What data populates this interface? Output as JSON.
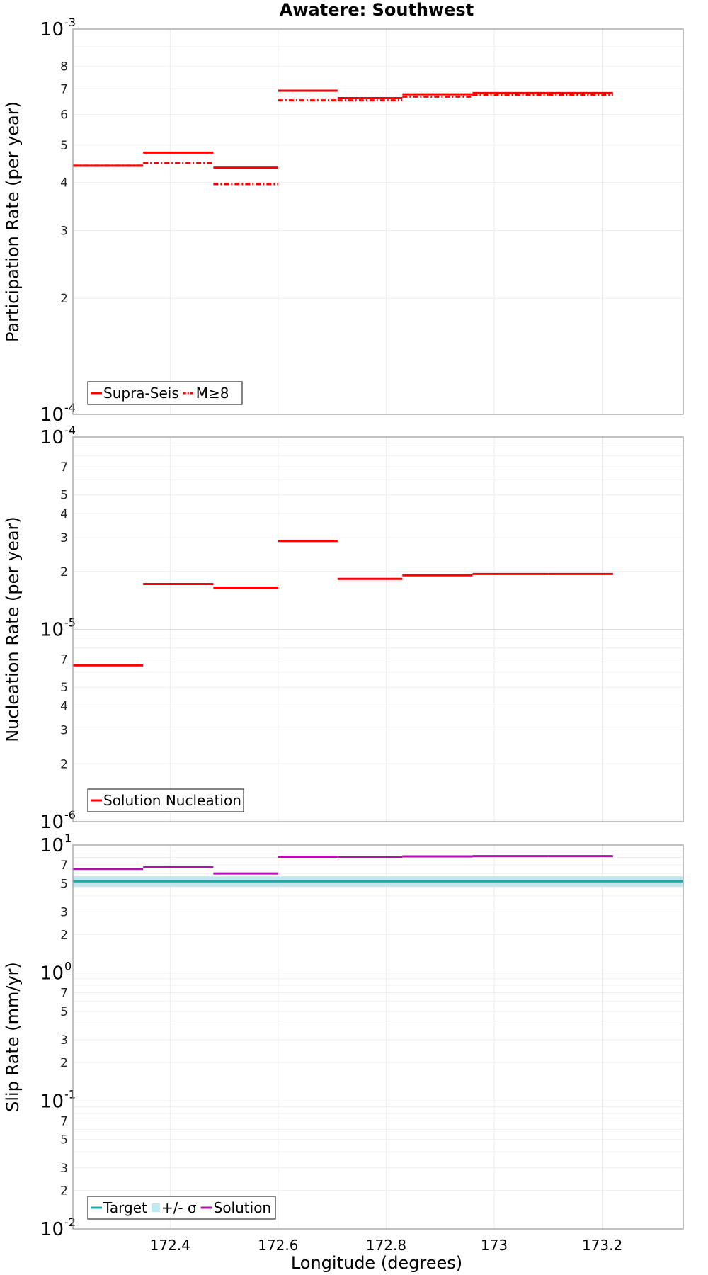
{
  "title": "Awatere: Southwest",
  "chart_data": [
    {
      "type": "line",
      "ylabel": "Participation Rate (per year)",
      "yscale": "log",
      "ylim_exp": [
        -4,
        -3
      ],
      "major_labels": [
        {
          "base": "10",
          "exp": "-4"
        },
        {
          "base": "10",
          "exp": "-3"
        }
      ],
      "minor_labels": [
        "2",
        "3",
        "4",
        "5",
        "6",
        "7",
        "8"
      ],
      "xlim": [
        172.22,
        173.35
      ],
      "series": [
        {
          "name": "Supra-Seis",
          "color": "#ff0000",
          "style": "solid",
          "segments": [
            {
              "x0": 172.22,
              "x1": 172.35,
              "y": 0.000442
            },
            {
              "x0": 172.35,
              "x1": 172.48,
              "y": 0.000478
            },
            {
              "x0": 172.48,
              "x1": 172.6,
              "y": 0.000437
            },
            {
              "x0": 172.6,
              "x1": 172.71,
              "y": 0.000692
            },
            {
              "x0": 172.71,
              "x1": 172.83,
              "y": 0.000662
            },
            {
              "x0": 172.83,
              "x1": 172.96,
              "y": 0.000677
            },
            {
              "x0": 172.96,
              "x1": 173.1,
              "y": 0.000682
            },
            {
              "x0": 173.1,
              "x1": 173.22,
              "y": 0.000682
            }
          ]
        },
        {
          "name": "M≥8",
          "color": "#ff0000",
          "style": "dashdot",
          "segments": [
            {
              "x0": 172.22,
              "x1": 172.35,
              "y": 0.000442
            },
            {
              "x0": 172.35,
              "x1": 172.48,
              "y": 0.000449
            },
            {
              "x0": 172.48,
              "x1": 172.6,
              "y": 0.000396
            },
            {
              "x0": 172.6,
              "x1": 172.71,
              "y": 0.000653
            },
            {
              "x0": 172.71,
              "x1": 172.83,
              "y": 0.000653
            },
            {
              "x0": 172.83,
              "x1": 172.96,
              "y": 0.000668
            },
            {
              "x0": 172.96,
              "x1": 173.1,
              "y": 0.000673
            },
            {
              "x0": 173.1,
              "x1": 173.22,
              "y": 0.000673
            }
          ]
        }
      ],
      "legend": [
        {
          "label": "Supra-Seis",
          "kind": "line",
          "color": "#ff0000",
          "style": "solid"
        },
        {
          "label": "M≥8",
          "kind": "line",
          "color": "#ff0000",
          "style": "dashdot"
        }
      ]
    },
    {
      "type": "line",
      "ylabel": "Nucleation Rate (per year)",
      "yscale": "log",
      "ylim_exp": [
        -6,
        -4
      ],
      "major_labels": [
        {
          "base": "10",
          "exp": "-6"
        },
        {
          "base": "10",
          "exp": "-5"
        },
        {
          "base": "10",
          "exp": "-4"
        }
      ],
      "minor_labels": [
        "2",
        "3",
        "4",
        "5",
        "7",
        "2",
        "3",
        "4",
        "5",
        "7"
      ],
      "xlim": [
        172.22,
        173.35
      ],
      "series": [
        {
          "name": "Solution Nucleation",
          "color": "#ff0000",
          "style": "solid",
          "segments": [
            {
              "x0": 172.22,
              "x1": 172.35,
              "y": 6.5e-06
            },
            {
              "x0": 172.35,
              "x1": 172.48,
              "y": 1.72e-05
            },
            {
              "x0": 172.48,
              "x1": 172.6,
              "y": 1.65e-05
            },
            {
              "x0": 172.6,
              "x1": 172.71,
              "y": 2.88e-05
            },
            {
              "x0": 172.71,
              "x1": 172.83,
              "y": 1.83e-05
            },
            {
              "x0": 172.83,
              "x1": 172.96,
              "y": 1.91e-05
            },
            {
              "x0": 172.96,
              "x1": 173.1,
              "y": 1.94e-05
            },
            {
              "x0": 173.1,
              "x1": 173.22,
              "y": 1.94e-05
            }
          ]
        }
      ],
      "legend": [
        {
          "label": "Solution Nucleation",
          "kind": "line",
          "color": "#ff0000",
          "style": "solid"
        }
      ]
    },
    {
      "type": "line",
      "ylabel": "Slip Rate (mm/yr)",
      "yscale": "log",
      "ylim_exp": [
        -2,
        1
      ],
      "major_labels": [
        {
          "base": "10",
          "exp": "-2"
        },
        {
          "base": "10",
          "exp": "-1"
        },
        {
          "base": "10",
          "exp": "0"
        },
        {
          "base": "10",
          "exp": "1"
        }
      ],
      "minor_labels": [
        "2",
        "3",
        "5",
        "7",
        "2",
        "3",
        "5",
        "7",
        "2",
        "3",
        "5",
        "7"
      ],
      "xlim": [
        172.22,
        173.35
      ],
      "band": {
        "name": "+/- σ",
        "color": "#bfe9ee",
        "y0": 4.7,
        "y1": 5.7,
        "x0": 172.22,
        "x1": 173.35
      },
      "series": [
        {
          "name": "Target",
          "color": "#17a8a8",
          "style": "solid",
          "segments": [
            {
              "x0": 172.22,
              "x1": 173.35,
              "y": 5.2
            }
          ]
        },
        {
          "name": "Solution",
          "color": "#b010b0",
          "style": "solid",
          "segments": [
            {
              "x0": 172.22,
              "x1": 172.35,
              "y": 6.5
            },
            {
              "x0": 172.35,
              "x1": 172.48,
              "y": 6.7
            },
            {
              "x0": 172.48,
              "x1": 172.6,
              "y": 6.0
            },
            {
              "x0": 172.6,
              "x1": 172.71,
              "y": 8.1
            },
            {
              "x0": 172.71,
              "x1": 172.83,
              "y": 8.0
            },
            {
              "x0": 172.83,
              "x1": 172.96,
              "y": 8.15
            },
            {
              "x0": 172.96,
              "x1": 173.1,
              "y": 8.2
            },
            {
              "x0": 173.1,
              "x1": 173.22,
              "y": 8.2
            }
          ]
        }
      ],
      "legend": [
        {
          "label": "Target",
          "kind": "line",
          "color": "#17a8a8",
          "style": "solid"
        },
        {
          "label": "+/- σ",
          "kind": "patch",
          "color": "#bfe9ee",
          "style": "solid"
        },
        {
          "label": "Solution",
          "kind": "line",
          "color": "#b010b0",
          "style": "solid"
        }
      ]
    }
  ],
  "xaxis": {
    "label": "Longitude (degrees)",
    "ticks": [
      172.4,
      172.6,
      172.8,
      173,
      173.2
    ],
    "tick_labels": [
      "172.4",
      "172.6",
      "172.8",
      "173",
      "173.2"
    ]
  }
}
